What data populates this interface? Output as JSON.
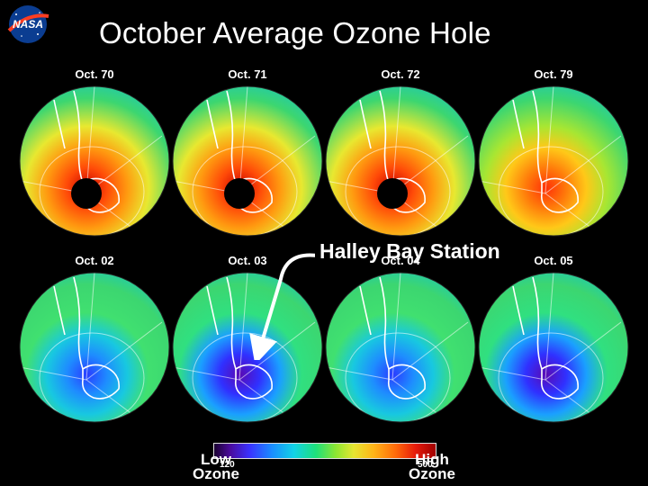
{
  "title": "October Average Ozone Hole",
  "logo_text": "NASA",
  "globes": [
    {
      "label": "Oct. 70",
      "hole": "black",
      "ozone": "high"
    },
    {
      "label": "Oct. 71",
      "hole": "black",
      "ozone": "high"
    },
    {
      "label": "Oct. 72",
      "hole": "black",
      "ozone": "high"
    },
    {
      "label": "Oct. 79",
      "hole": "none",
      "ozone": "mid"
    },
    {
      "label": "Oct. 02",
      "hole": "none",
      "ozone": "low"
    },
    {
      "label": "Oct. 03",
      "hole": "none",
      "ozone": "verylow"
    },
    {
      "label": "Oct. 04",
      "hole": "none",
      "ozone": "low"
    },
    {
      "label": "Oct. 05",
      "hole": "none",
      "ozone": "verylow"
    }
  ],
  "annotation": "Halley Bay Station",
  "legend": {
    "low_label": "Low",
    "high_label": "High",
    "unit_label": "Ozone",
    "tick_low": "120",
    "tick_high": "500"
  },
  "colors": {
    "background": "#000000",
    "text": "#ffffff",
    "coastline": "#ffffff"
  }
}
